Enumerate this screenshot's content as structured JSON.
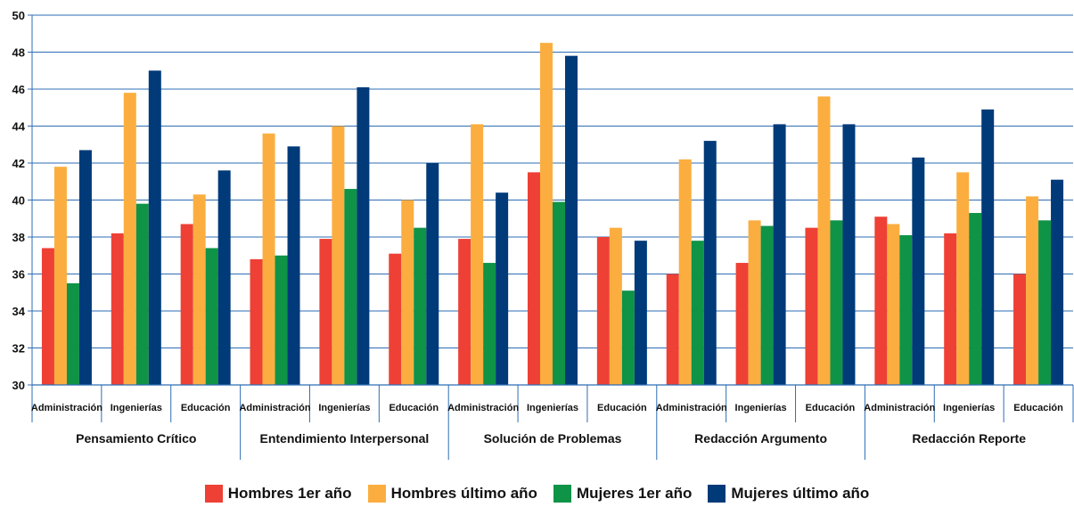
{
  "chart_data": {
    "type": "bar",
    "ylim": [
      30,
      50
    ],
    "ytick_step": 2,
    "grid": true,
    "legend_position": "bottom-center",
    "groups": [
      "Pensamiento Crítico",
      "Entendimiento Interpersonal",
      "Solución de Problemas",
      "Redacción Argumento",
      "Redacción Reporte"
    ],
    "subcategories": [
      "Administración",
      "Ingenierías",
      "Educación"
    ],
    "series": [
      {
        "name": "Hombres 1er año",
        "color": "#EE4035",
        "values": [
          37.4,
          38.2,
          38.7,
          36.8,
          37.9,
          37.1,
          37.9,
          41.5,
          38.0,
          36.0,
          36.6,
          38.5,
          39.1,
          38.2,
          36.0
        ]
      },
      {
        "name": "Hombres último año",
        "color": "#FBAE3F",
        "values": [
          41.8,
          45.8,
          40.3,
          43.6,
          44.0,
          40.0,
          44.1,
          48.5,
          38.5,
          42.2,
          38.9,
          45.6,
          38.7,
          41.5,
          40.2
        ]
      },
      {
        "name": "Mujeres 1er año",
        "color": "#0E9347",
        "values": [
          35.5,
          39.8,
          37.4,
          37.0,
          40.6,
          38.5,
          36.6,
          39.9,
          35.1,
          37.8,
          38.6,
          38.9,
          38.1,
          39.3,
          38.9
        ]
      },
      {
        "name": "Mujeres último año",
        "color": "#003A79",
        "values": [
          42.7,
          47.0,
          41.6,
          42.9,
          46.1,
          42.0,
          40.4,
          47.8,
          37.8,
          43.2,
          44.1,
          44.1,
          42.3,
          44.9,
          41.1
        ]
      }
    ]
  }
}
